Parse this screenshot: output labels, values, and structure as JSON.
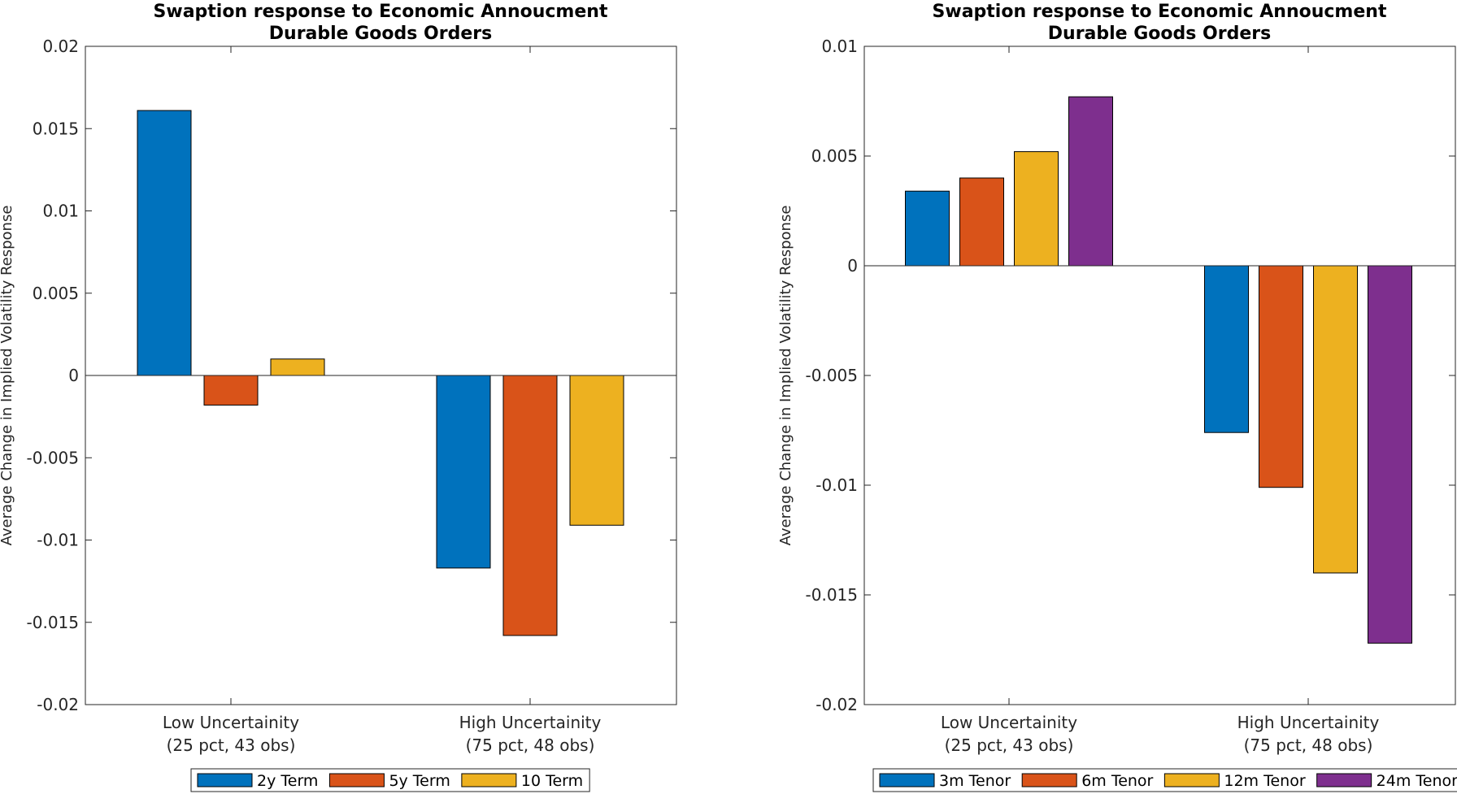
{
  "chart_data": [
    {
      "type": "bar",
      "title": [
        "Swaption response to Economic Annoucment",
        "Durable Goods Orders"
      ],
      "ylabel": "Average Change in Implied Volatility Response",
      "xlabel": "",
      "ylim": [
        -0.02,
        0.02
      ],
      "yticks": [
        -0.02,
        -0.015,
        -0.01,
        -0.005,
        0,
        0.005,
        0.01,
        0.015,
        0.02
      ],
      "ytick_labels": [
        "-0.02",
        "-0.015",
        "-0.01",
        "-0.005",
        "0",
        "0.005",
        "0.01",
        "0.015",
        "0.02"
      ],
      "categories": [
        [
          "Low Uncertainity",
          "(25 pct, 43 obs)"
        ],
        [
          "High Uncertainity",
          "(75 pct, 48 obs)"
        ]
      ],
      "series": [
        {
          "name": "2y Term",
          "color": "#0072BD",
          "values": [
            0.0161,
            -0.0117
          ]
        },
        {
          "name": "5y Term",
          "color": "#D95319",
          "values": [
            -0.0018,
            -0.0158
          ]
        },
        {
          "name": "10 Term",
          "color": "#EDB120",
          "values": [
            0.001,
            -0.0091
          ]
        }
      ],
      "grid": false,
      "legend_position": "bottom-center"
    },
    {
      "type": "bar",
      "title": [
        "Swaption response to Economic Annoucment",
        "Durable Goods Orders"
      ],
      "ylabel": "Average Change in Implied Volatility Response",
      "xlabel": "",
      "ylim": [
        -0.02,
        0.01
      ],
      "yticks": [
        -0.02,
        -0.015,
        -0.01,
        -0.005,
        0,
        0.005,
        0.01
      ],
      "ytick_labels": [
        "-0.02",
        "-0.015",
        "-0.01",
        "-0.005",
        "0",
        "0.005",
        "0.01"
      ],
      "categories": [
        [
          "Low Uncertainity",
          "(25 pct, 43 obs)"
        ],
        [
          "High Uncertainity",
          "(75 pct, 48 obs)"
        ]
      ],
      "series": [
        {
          "name": "3m Tenor",
          "color": "#0072BD",
          "values": [
            0.0034,
            -0.0076
          ]
        },
        {
          "name": "6m Tenor",
          "color": "#D95319",
          "values": [
            0.004,
            -0.0101
          ]
        },
        {
          "name": "12m Tenor",
          "color": "#EDB120",
          "values": [
            0.0052,
            -0.014
          ]
        },
        {
          "name": "24m Tenor",
          "color": "#7E2F8E",
          "values": [
            0.0077,
            -0.0172
          ]
        }
      ],
      "grid": false,
      "legend_position": "bottom-center"
    }
  ]
}
